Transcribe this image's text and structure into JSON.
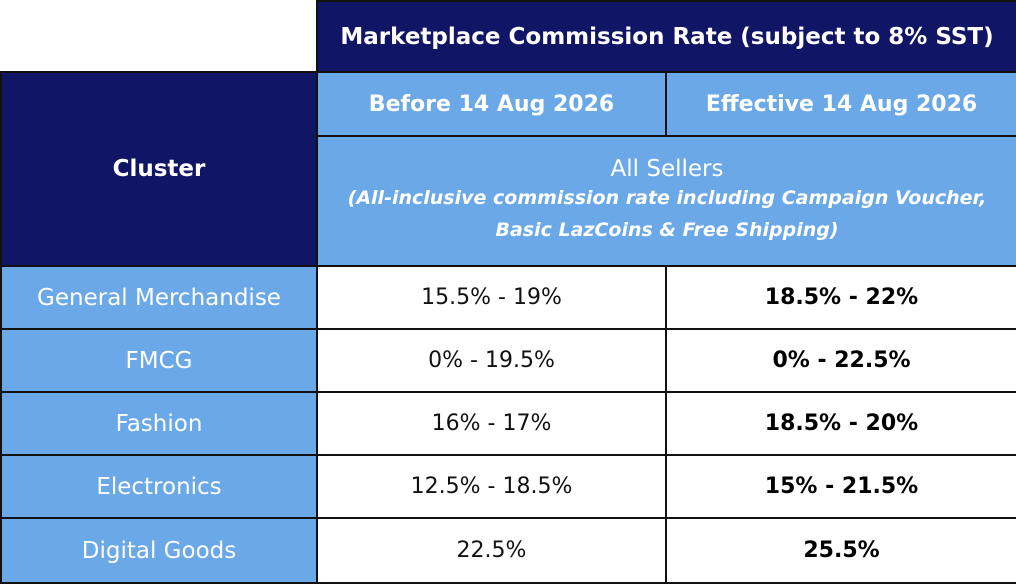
{
  "table": {
    "title": "Marketplace Commission Rate (subject to 8% SST)",
    "cluster_header": "Cluster",
    "before_header": "Before 14 Aug 2026",
    "effective_header": "Effective 14 Aug 2026",
    "sellers_label": "All Sellers",
    "sellers_note_line1": "(All-inclusive commission rate including Campaign Voucher,",
    "sellers_note_line2": "Basic LazCoins & Free Shipping)",
    "rows": [
      {
        "cluster": "General Merchandise",
        "before": "15.5% - 19%",
        "effective": "18.5% - 22%"
      },
      {
        "cluster": "FMCG",
        "before": "0% - 19.5%",
        "effective": "0% - 22.5%"
      },
      {
        "cluster": "Fashion",
        "before": "16% - 17%",
        "effective": "18.5% - 20%"
      },
      {
        "cluster": "Electronics",
        "before": "12.5% - 18.5%",
        "effective": "15% - 21.5%"
      },
      {
        "cluster": "Digital Goods",
        "before": "22.5%",
        "effective": "25.5%"
      }
    ]
  },
  "colors": {
    "header_navy": "#101566",
    "header_blue": "#6aa8e8",
    "border": "#111111"
  }
}
